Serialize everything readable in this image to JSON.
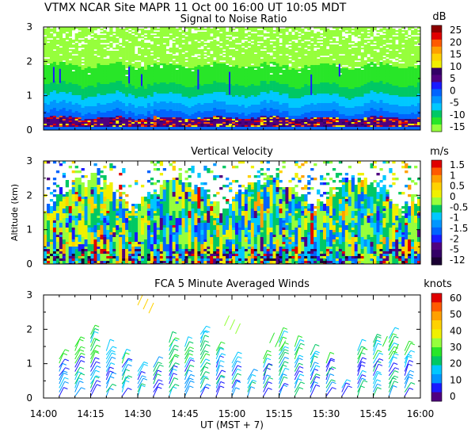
{
  "figure": {
    "header": "VTMX   NCAR Site   MAPR 11 Oct 00   16:00 UT   10:05   MDT",
    "xlabel": "UT  (MST + 7)",
    "ylabel": "Altitude (km)",
    "xtick_labels": [
      "14:00",
      "14:15",
      "14:30",
      "14:45",
      "15:00",
      "15:15",
      "15:30",
      "15:45",
      "16:00"
    ],
    "ytick_labels": [
      "0",
      "1",
      "2",
      "3"
    ]
  },
  "chart_data": [
    {
      "type": "heatmap",
      "title": "Signal to Noise Ratio",
      "unit": "dB",
      "xlim": [
        "14:00",
        "16:00"
      ],
      "ylim": [
        0,
        3
      ],
      "colorbar_labels": [
        "25",
        "20",
        "15",
        "10",
        "5",
        "0",
        "-5",
        "-10",
        "-15"
      ],
      "colorbar_colors": [
        "#8B0000",
        "#E00000",
        "#FF5A00",
        "#FFA000",
        "#FFD200",
        "#F0F000",
        "#330066",
        "#500080",
        "#1A1AFF",
        "#0064FF",
        "#0096FF",
        "#00C8FF",
        "#00C864",
        "#28E628",
        "#96FF3C"
      ],
      "grid": false
    },
    {
      "type": "heatmap",
      "title": "Vertical Velocity",
      "unit": "m/s",
      "xlim": [
        "14:00",
        "16:00"
      ],
      "ylim": [
        0,
        3
      ],
      "colorbar_labels": [
        "1.5",
        "1",
        "0.5",
        "0",
        "-0.5",
        "-1",
        "-1.5",
        "-2",
        "-5",
        "-12"
      ],
      "colorbar_colors": [
        "#E00000",
        "#FF5A00",
        "#FFA000",
        "#FFD200",
        "#F0F000",
        "#96FF3C",
        "#00C864",
        "#00C8FF",
        "#0096FF",
        "#0064FF",
        "#1A1AFF",
        "#500080",
        "#330066",
        "#1A0033"
      ],
      "grid": false
    },
    {
      "type": "scatter",
      "title": "FCA 5 Minute Averaged Winds",
      "unit": "knots",
      "xlim": [
        "14:00",
        "16:00"
      ],
      "ylim": [
        0,
        3
      ],
      "colorbar_labels": [
        "60",
        "50",
        "40",
        "30",
        "20",
        "10",
        "0"
      ],
      "colorbar_colors": [
        "#E00000",
        "#FF5A00",
        "#FFA000",
        "#FFD200",
        "#F0F000",
        "#96FF3C",
        "#28E628",
        "#00C864",
        "#00C8FF",
        "#0096FF",
        "#1A1AFF",
        "#500080"
      ],
      "grid": false
    }
  ]
}
